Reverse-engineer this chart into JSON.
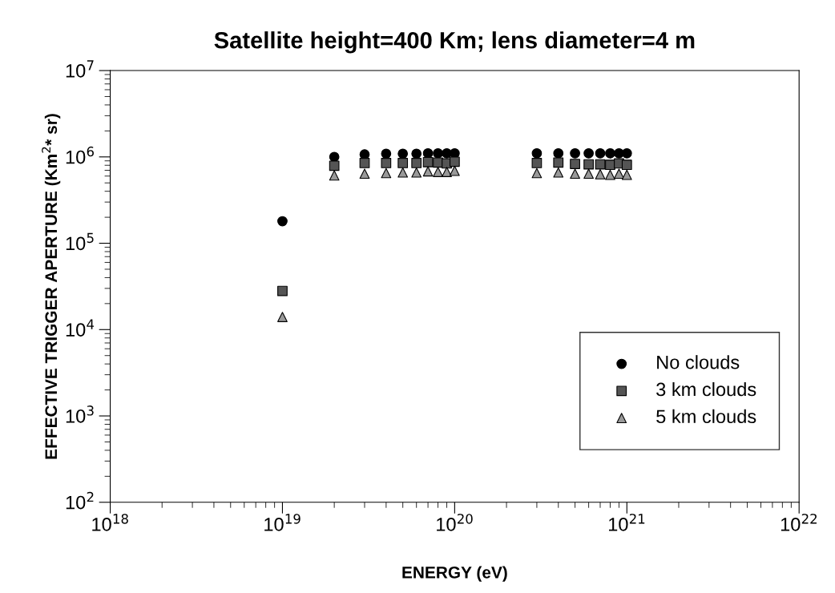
{
  "chart_data": {
    "type": "scatter",
    "title": "Satellite height=400 Km; lens diameter=4 m",
    "xlabel": "ENERGY (eV)",
    "ylabel": "EFFECTIVE TRIGGER APERTURE (Km$^{2}$* sr)",
    "x": [
      1e+19,
      2e+19,
      3e+19,
      4e+19,
      5e+19,
      6e+19,
      7e+19,
      8e+19,
      9e+19,
      1e+20,
      3e+20,
      4e+20,
      5e+20,
      6e+20,
      7e+20,
      8e+20,
      9e+20,
      1e+21
    ],
    "series": [
      {
        "name": "No clouds",
        "color": "#000000",
        "marker": "circle",
        "values": [
          180000,
          1000000,
          1070000,
          1090000,
          1090000,
          1090000,
          1100000,
          1100000,
          1100000,
          1100000,
          1100000,
          1100000,
          1100000,
          1100000,
          1100000,
          1100000,
          1100000,
          1100000
        ]
      },
      {
        "name": "3 km clouds",
        "color": "#555555",
        "marker": "square",
        "values": [
          28000,
          790000,
          850000,
          850000,
          850000,
          850000,
          870000,
          860000,
          840000,
          880000,
          850000,
          860000,
          830000,
          820000,
          820000,
          810000,
          840000,
          810000
        ]
      },
      {
        "name": "5 km clouds",
        "color": "#999999",
        "marker": "triangle",
        "values": [
          14000,
          610000,
          640000,
          650000,
          660000,
          660000,
          680000,
          670000,
          670000,
          690000,
          650000,
          660000,
          640000,
          640000,
          630000,
          620000,
          640000,
          620000
        ]
      }
    ],
    "xlim": [
      1e+18,
      1e+22
    ],
    "ylim": [
      100,
      10000000
    ],
    "xticks": [
      {
        "value": 1e+18,
        "label": "10$^{18}$"
      },
      {
        "value": 1e+19,
        "label": "10$^{19}$"
      },
      {
        "value": 1e+20,
        "label": "10$^{20}$"
      },
      {
        "value": 1e+21,
        "label": "10$^{21}$"
      },
      {
        "value": 1e+22,
        "label": "10$^{22}$"
      }
    ],
    "yticks": [
      {
        "value": 100,
        "label": "10$^{2}$"
      },
      {
        "value": 1000,
        "label": "10$^{3}$"
      },
      {
        "value": 10000,
        "label": "10$^{4}$"
      },
      {
        "value": 100000,
        "label": "10$^{5}$"
      },
      {
        "value": 1000000,
        "label": "10$^{6}$"
      },
      {
        "value": 10000000,
        "label": "10$^{7}$"
      }
    ],
    "log": "xy",
    "grid": false,
    "legend": "bottom right"
  }
}
